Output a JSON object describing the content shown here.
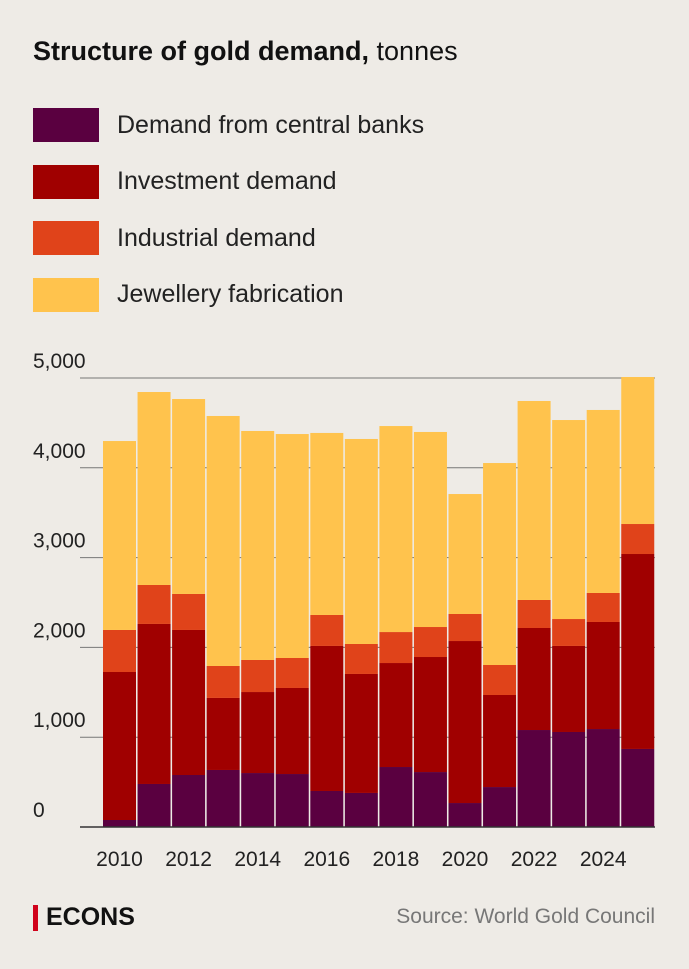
{
  "title_bold": "Structure of gold demand,",
  "title_unit": "tonnes",
  "brand": "ECONS",
  "source": "Source: World Gold Council",
  "chart_data": {
    "type": "bar",
    "stacked": true,
    "title": "Structure of gold demand, tonnes",
    "xlabel": "",
    "ylabel": "",
    "ylim": [
      0,
      5000
    ],
    "yticks": [
      0,
      1000,
      2000,
      3000,
      4000,
      5000
    ],
    "ytick_labels": [
      "0",
      "1,000",
      "2,000",
      "3,000",
      "4,000",
      "5,000"
    ],
    "grid": true,
    "legend_position": "top-left",
    "categories": [
      "2010",
      "2011",
      "2012",
      "2013",
      "2014",
      "2015",
      "2016",
      "2017",
      "2018",
      "2019",
      "2020",
      "2021",
      "2022",
      "2023",
      "2024",
      "2025"
    ],
    "xtick_labels": [
      "2010",
      "2012",
      "2014",
      "2016",
      "2018",
      "2020",
      "2022",
      "2024"
    ],
    "series": [
      {
        "name": "Demand from central banks",
        "color": "#5a0040",
        "values": [
          78,
          479,
          579,
          635,
          601,
          590,
          401,
          379,
          668,
          612,
          267,
          445,
          1080,
          1058,
          1091,
          869
        ]
      },
      {
        "name": "Investment demand",
        "color": "#a00000",
        "values": [
          1648,
          1782,
          1615,
          802,
          902,
          958,
          1615,
          1325,
          1158,
          1281,
          1804,
          1025,
          1136,
          958,
          1192,
          2171
        ]
      },
      {
        "name": "Industrial demand",
        "color": "#e0431a",
        "values": [
          468,
          434,
          401,
          356,
          357,
          334,
          345,
          334,
          345,
          334,
          301,
          334,
          312,
          300,
          323,
          334
        ]
      },
      {
        "name": "Jewellery fabrication",
        "color": "#ffc34d",
        "values": [
          2104,
          2149,
          2171,
          2784,
          2550,
          2494,
          2027,
          2283,
          2294,
          2172,
          1336,
          2249,
          2216,
          2216,
          2038,
          1637
        ]
      }
    ]
  }
}
